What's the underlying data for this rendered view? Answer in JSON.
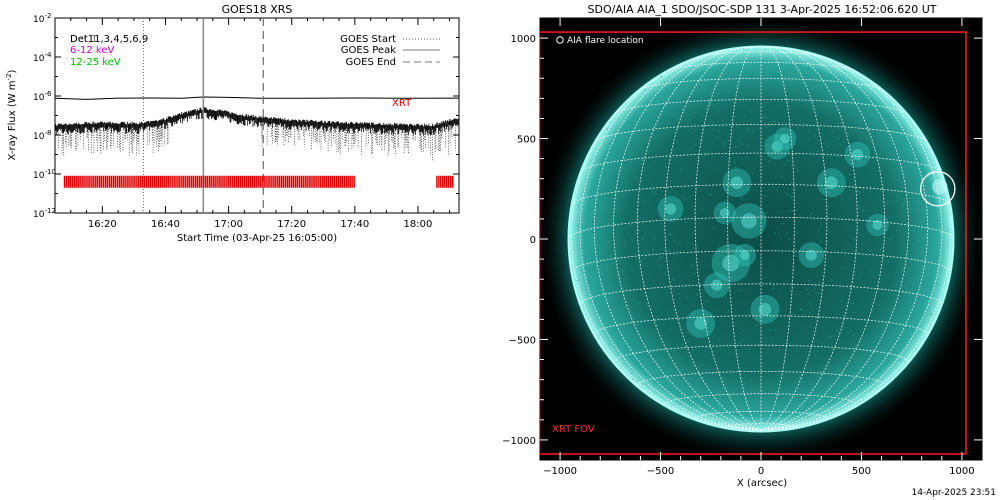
{
  "footer_timestamp": "14-Apr-2025 23:51",
  "chart_data": [
    {
      "type": "line",
      "title": "GOES18 XRS",
      "ylabel": "X-ray Flux (W m",
      "ylabel_sup": "-2",
      "ylabel_close": ")",
      "xlabel": "Start Time (03-Apr-25 16:05:00)",
      "ylog": true,
      "ylim_exp": [
        -12,
        -2
      ],
      "xlim_min": [
        0,
        128
      ],
      "x_ticks": [
        {
          "min": 15,
          "label": "16:20"
        },
        {
          "min": 35,
          "label": "16:40"
        },
        {
          "min": 55,
          "label": "17:00"
        },
        {
          "min": 75,
          "label": "17:20"
        },
        {
          "min": 95,
          "label": "17:40"
        },
        {
          "min": 115,
          "label": "18:00"
        }
      ],
      "y_ticks": [
        {
          "exp": -12,
          "label": "10",
          "sup": "-12"
        },
        {
          "exp": -10,
          "label": "10",
          "sup": "-10"
        },
        {
          "exp": -8,
          "label": "10",
          "sup": "-8"
        },
        {
          "exp": -6,
          "label": "10",
          "sup": "-6"
        },
        {
          "exp": -4,
          "label": "10",
          "sup": "-4"
        },
        {
          "exp": -2,
          "label": "10",
          "sup": "-2"
        }
      ],
      "channels": [
        {
          "label": "Det11,3,4,5,6,9",
          "overlap_label": "Det 1",
          "color": "#000000"
        },
        {
          "label": "6-12 keV",
          "color": "#d000d0"
        },
        {
          "label": "12-25 keV",
          "color": "#00c000"
        }
      ],
      "goes_legend": [
        {
          "label": "GOES Start",
          "style": "dotted"
        },
        {
          "label": "GOES Peak",
          "style": "solid"
        },
        {
          "label": "GOES End",
          "style": "dashed"
        }
      ],
      "goes_events_min": {
        "start": 28,
        "peak": 47,
        "end": 66
      },
      "series": [
        {
          "color": "#000000",
          "points": [
            [
              0,
              -6.15
            ],
            [
              10,
              -6.15
            ],
            [
              20,
              -6.12
            ],
            [
              30,
              -6.12
            ],
            [
              40,
              -6.1
            ],
            [
              47,
              -6.05
            ],
            [
              55,
              -6.08
            ],
            [
              65,
              -6.1
            ],
            [
              80,
              -6.1
            ],
            [
              95,
              -6.1
            ],
            [
              110,
              -6.1
            ],
            [
              128,
              -6.1
            ]
          ]
        },
        {
          "color": "#000000",
          "noisy": true,
          "points": [
            [
              0,
              -7.6
            ],
            [
              10,
              -7.5
            ],
            [
              20,
              -7.5
            ],
            [
              28,
              -7.5
            ],
            [
              33,
              -7.4
            ],
            [
              38,
              -7.1
            ],
            [
              43,
              -6.9
            ],
            [
              47,
              -6.75
            ],
            [
              52,
              -6.85
            ],
            [
              58,
              -7.05
            ],
            [
              65,
              -7.2
            ],
            [
              75,
              -7.35
            ],
            [
              85,
              -7.45
            ],
            [
              95,
              -7.5
            ],
            [
              105,
              -7.55
            ],
            [
              115,
              -7.6
            ],
            [
              120,
              -7.6
            ],
            [
              125,
              -7.35
            ],
            [
              128,
              -7.3
            ]
          ]
        }
      ],
      "xrt_label": "XRT",
      "xrt_exp": -10.4,
      "xrt_obs_ranges_min": [
        [
          3,
          95
        ],
        [
          121,
          126
        ]
      ]
    },
    {
      "type": "image",
      "title": "SDO/AIA AIA_1 SDO/JSOC-SDP 131  3-Apr-2025 16:52:06.620 UT",
      "xlabel": "X (arcsec)",
      "xlim": [
        -1100,
        1100
      ],
      "ylim": [
        -1100,
        1100
      ],
      "x_ticks": [
        -1000,
        -500,
        0,
        500,
        1000
      ],
      "y_ticks": [
        -1000,
        -500,
        0,
        500,
        1000
      ],
      "solar_radius": 958,
      "legend_flare": "AIA flare location",
      "flare_center": [
        880,
        250
      ],
      "flare_radius": 85,
      "xrt_label": "XRT FOV",
      "xrt_fov_x": [
        -1100,
        1020
      ],
      "xrt_fov_y": [
        -1070,
        1030
      ],
      "colors": {
        "disk": "#1a8f85",
        "limb": "#7ff7ee",
        "grid": "#ffffff",
        "fov": "#ff1a1a"
      }
    }
  ]
}
